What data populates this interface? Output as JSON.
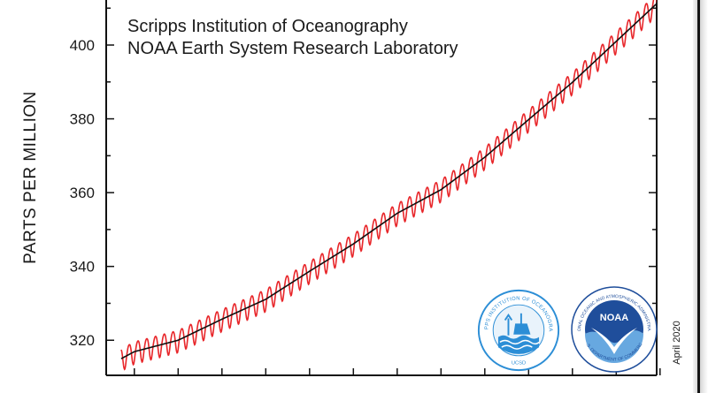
{
  "credits": {
    "line1": "Scripps Institution of Oceanography",
    "line2": "NOAA Earth System Research Laboratory"
  },
  "date_note": "April 2020",
  "logos": [
    {
      "name": "scripps-logo",
      "text": "SCRIPPS INSTITUTION OF OCEANOGRAPHY",
      "bottom_text": "UCSD"
    },
    {
      "name": "noaa-logo",
      "text": "NATIONAL OCEANIC AND ATMOSPHERIC ADMINISTRATION",
      "bottom_text": "U.S. DEPARTMENT OF COMMERCE",
      "center_text": "NOAA"
    }
  ],
  "colors": {
    "monthly": "#e8262a",
    "trend": "#111111",
    "axis": "#111111",
    "scripps_blue": "#2c8ed6",
    "noaa_blue": "#1f4e9b",
    "noaa_light": "#67a8e0"
  },
  "chart_data": {
    "type": "line",
    "title": "",
    "xlabel": "",
    "ylabel": "PARTS PER MILLION",
    "yticks": [
      320,
      340,
      360,
      380,
      400
    ],
    "ylim": [
      313.5,
      412
    ],
    "xlim": [
      1958,
      2020.3
    ],
    "series": [
      {
        "role": "monthly",
        "color": "#e8262a",
        "seasonal_amplitude_ppm": 3.0
      },
      {
        "role": "trend",
        "color": "#111111",
        "x": [
          1958.5,
          1960,
          1965,
          1970,
          1975,
          1980,
          1985,
          1990,
          1995,
          2000,
          2005,
          2010,
          2015,
          2020.2
        ],
        "values": [
          315,
          316.9,
          320.0,
          325.7,
          331.1,
          338.7,
          346.1,
          354.4,
          360.8,
          369.6,
          379.8,
          389.9,
          401.0,
          412.5
        ]
      }
    ]
  }
}
